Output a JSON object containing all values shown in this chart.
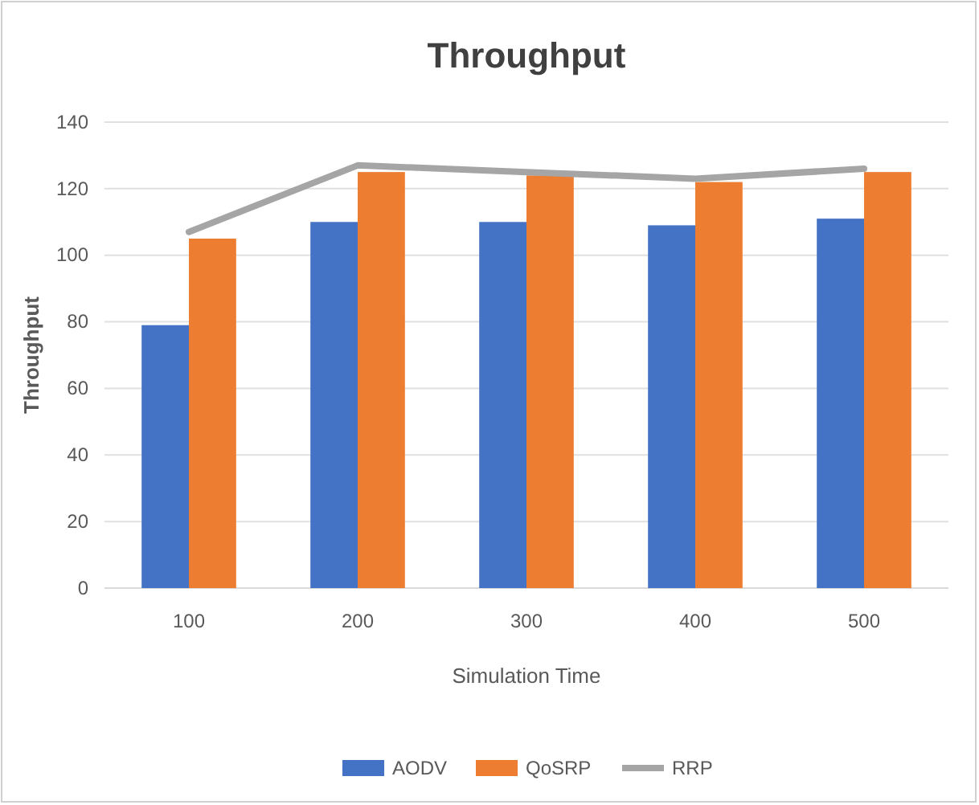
{
  "chart_data": {
    "type": "bar",
    "title": "Throughput",
    "xlabel": "Simulation Time",
    "ylabel": "Throughput",
    "categories": [
      "100",
      "200",
      "300",
      "400",
      "500"
    ],
    "series": [
      {
        "name": "AODV",
        "color": "#4472c4",
        "values": [
          79,
          110,
          110,
          109,
          111
        ]
      },
      {
        "name": "QoSRP",
        "color": "#ed7d31",
        "values": [
          105,
          125,
          124,
          122,
          125
        ]
      },
      {
        "name": "RRP",
        "color": "#a5a5a5",
        "type": "line",
        "values": [
          107,
          127,
          125,
          123,
          126
        ]
      }
    ],
    "ylim": [
      0,
      140
    ],
    "yticks": [
      0,
      20,
      40,
      60,
      80,
      100,
      120,
      140
    ],
    "grid": "y",
    "legend": "bottom",
    "marker": "none"
  }
}
